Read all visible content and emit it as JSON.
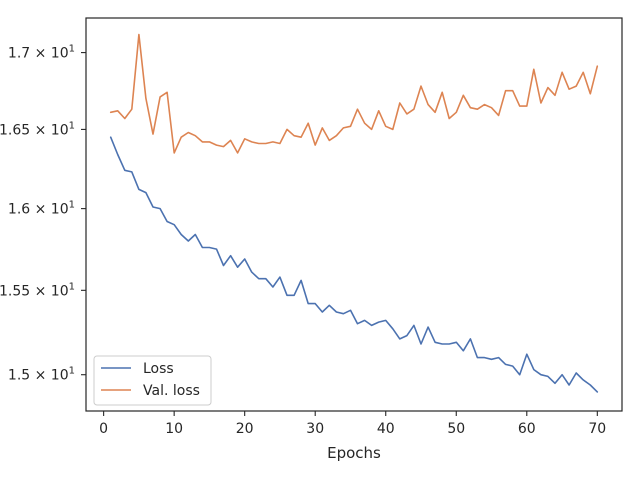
{
  "chart_data": {
    "type": "line",
    "xlabel": "Epochs",
    "ylabel": "",
    "y_scale": "log",
    "xlim": [
      -2.5,
      73.5
    ],
    "ylim": [
      14.79,
      17.23
    ],
    "x_ticks": [
      0,
      10,
      20,
      30,
      40,
      50,
      60,
      70
    ],
    "y_ticks": [
      {
        "value": 15.0,
        "base": "1.5",
        "exp": "1"
      },
      {
        "value": 15.5,
        "base": "1.55",
        "exp": "1"
      },
      {
        "value": 16.0,
        "base": "1.6",
        "exp": "1"
      },
      {
        "value": 16.5,
        "base": "1.65",
        "exp": "1"
      },
      {
        "value": 17.0,
        "base": "1.7",
        "exp": "1"
      }
    ],
    "y_tick_mult": "×",
    "y_tick_base10": "10",
    "grid": false,
    "legend_position": "lower-left",
    "x": [
      1,
      2,
      3,
      4,
      5,
      6,
      7,
      8,
      9,
      10,
      11,
      12,
      13,
      14,
      15,
      16,
      17,
      18,
      19,
      20,
      21,
      22,
      23,
      24,
      25,
      26,
      27,
      28,
      29,
      30,
      31,
      32,
      33,
      34,
      35,
      36,
      37,
      38,
      39,
      40,
      41,
      42,
      43,
      44,
      45,
      46,
      47,
      48,
      49,
      50,
      51,
      52,
      53,
      54,
      55,
      56,
      57,
      58,
      59,
      60,
      61,
      62,
      63,
      64,
      65,
      66,
      67,
      68,
      69,
      70
    ],
    "series": [
      {
        "name": "Loss",
        "color": "#4c72b0",
        "values": [
          16.45,
          16.34,
          16.24,
          16.23,
          16.12,
          16.1,
          16.01,
          16.0,
          15.92,
          15.9,
          15.84,
          15.8,
          15.84,
          15.76,
          15.76,
          15.75,
          15.65,
          15.71,
          15.64,
          15.69,
          15.61,
          15.57,
          15.57,
          15.52,
          15.58,
          15.47,
          15.47,
          15.56,
          15.42,
          15.42,
          15.37,
          15.41,
          15.37,
          15.36,
          15.38,
          15.3,
          15.32,
          15.29,
          15.31,
          15.32,
          15.27,
          15.21,
          15.23,
          15.29,
          15.18,
          15.28,
          15.19,
          15.18,
          15.18,
          15.19,
          15.14,
          15.21,
          15.1,
          15.1,
          15.09,
          15.1,
          15.06,
          15.05,
          15.0,
          15.12,
          15.03,
          15.0,
          14.99,
          14.95,
          15.0,
          14.94,
          15.01,
          14.97,
          14.94,
          14.9
        ]
      },
      {
        "name": "Val. loss",
        "color": "#dd8452",
        "values": [
          16.61,
          16.62,
          16.57,
          16.63,
          17.12,
          16.7,
          16.47,
          16.71,
          16.74,
          16.35,
          16.45,
          16.48,
          16.46,
          16.42,
          16.42,
          16.4,
          16.39,
          16.43,
          16.35,
          16.44,
          16.42,
          16.41,
          16.41,
          16.42,
          16.41,
          16.5,
          16.46,
          16.45,
          16.54,
          16.4,
          16.51,
          16.43,
          16.46,
          16.51,
          16.52,
          16.63,
          16.54,
          16.5,
          16.62,
          16.52,
          16.5,
          16.67,
          16.6,
          16.63,
          16.78,
          16.66,
          16.61,
          16.74,
          16.57,
          16.61,
          16.72,
          16.64,
          16.63,
          16.66,
          16.64,
          16.59,
          16.75,
          16.75,
          16.65,
          16.65,
          16.89,
          16.67,
          16.77,
          16.72,
          16.87,
          16.76,
          16.78,
          16.87,
          16.73,
          16.91
        ]
      }
    ]
  }
}
